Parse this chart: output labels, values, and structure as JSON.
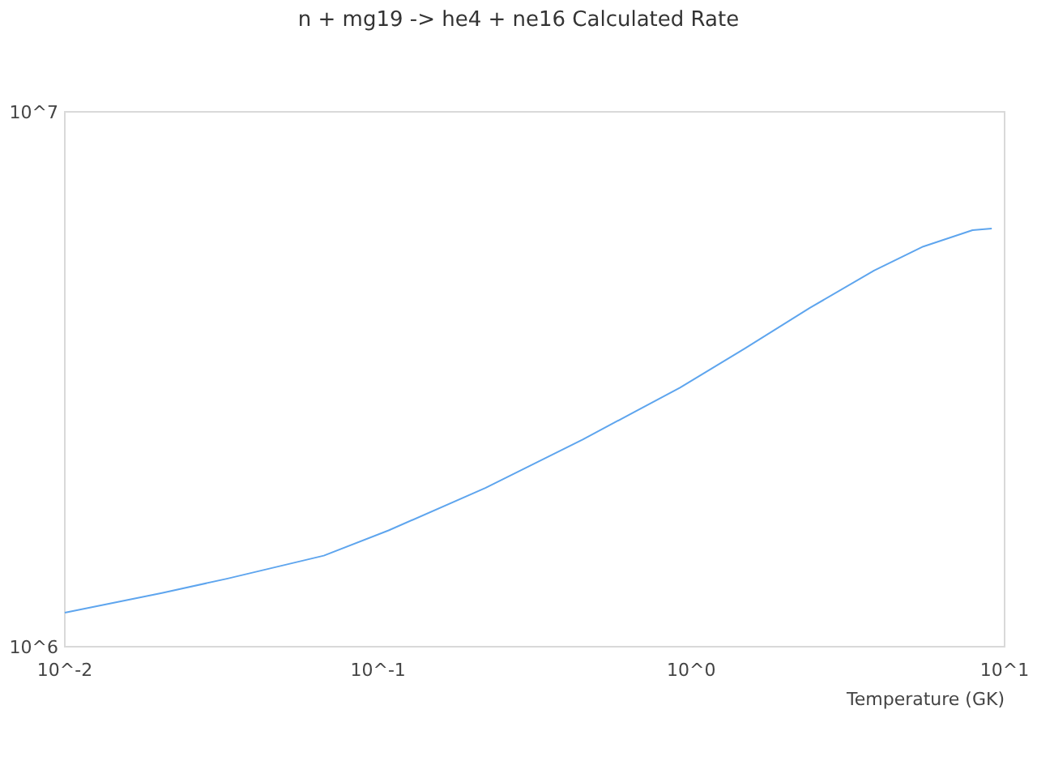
{
  "chart_data": {
    "type": "line",
    "title": "n + mg19 -> he4 + ne16 Calculated Rate",
    "xlabel": "Temperature (GK)",
    "log": "xy",
    "grid": false,
    "xlim": [
      0.01,
      10
    ],
    "ylim": [
      1000000,
      10000000
    ],
    "xticks": [
      {
        "value": 0.01,
        "label": "10^-2"
      },
      {
        "value": 0.1,
        "label": "10^-1"
      },
      {
        "value": 1,
        "label": "10^0"
      },
      {
        "value": 10,
        "label": "10^1"
      }
    ],
    "yticks": [
      {
        "value": 1000000,
        "label": "10^6"
      },
      {
        "value": 10000000,
        "label": "10^7"
      }
    ],
    "series": [
      {
        "color": "#5ea5ee",
        "x": [
          0.01,
          0.0204,
          0.0329,
          0.0671,
          0.108,
          0.22,
          0.45,
          0.92,
          1.48,
          2.39,
          3.83,
          5.5,
          7.9,
          9.1
        ],
        "values": [
          1158000,
          1260000,
          1340000,
          1480000,
          1650000,
          1980000,
          2440000,
          3050000,
          3610000,
          4300000,
          5050000,
          5600000,
          6010000,
          6050000
        ]
      }
    ]
  }
}
